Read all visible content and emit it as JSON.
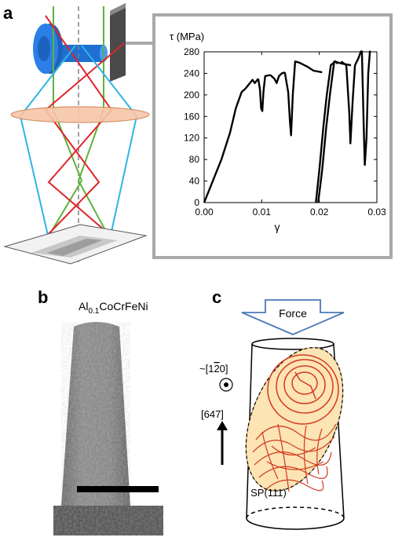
{
  "panels": {
    "a": {
      "letter": "a"
    },
    "b": {
      "letter": "b",
      "sample_name": {
        "prefix": "Al",
        "subscript": "0.1",
        "suffix": "CoCrFeNi"
      }
    },
    "c": {
      "letter": "c",
      "force_label": "Force",
      "direction_top": "~[1̅2̅0]",
      "direction_top_text": "~[120]",
      "direction_axis": "[647]",
      "slip_plane": "SP(111)"
    }
  },
  "colors": {
    "beam_green": "#5cb33a",
    "beam_red": "#e0242a",
    "beam_cyan": "#2fb5e6",
    "lens_fill": "#f7c6a8",
    "detector": "#5a5a5a",
    "holder_blue": "#1f6fd1",
    "chart_border": "#a9a9a9",
    "curve": "#000000",
    "sample_oval": "#fde4b4",
    "dislocation": "#d23a1f",
    "force_arrow_edge": "#4a7ab8"
  },
  "chart_data": {
    "type": "line",
    "title": "",
    "xlabel": "γ",
    "ylabel": "τ (MPa)",
    "xlim": [
      0.0,
      0.03
    ],
    "ylim": [
      0,
      280
    ],
    "xticks": [
      "0.00",
      "0.01",
      "0.02",
      "0.03"
    ],
    "xtick_values": [
      0.0,
      0.01,
      0.02,
      0.03
    ],
    "yticks": [
      "0",
      "40",
      "80",
      "120",
      "160",
      "200",
      "240",
      "280"
    ],
    "ytick_values": [
      0,
      40,
      80,
      120,
      160,
      200,
      240,
      280
    ],
    "grid": false,
    "series": [
      {
        "segments": [
          [
            [
              0.0,
              0
            ],
            [
              0.0015,
              40
            ],
            [
              0.003,
              80
            ],
            [
              0.0045,
              130
            ],
            [
              0.0055,
              175
            ],
            [
              0.0065,
              205
            ],
            [
              0.0072,
              212
            ]
          ],
          [
            [
              0.0072,
              212
            ],
            [
              0.0078,
              220
            ],
            [
              0.0084,
              228
            ],
            [
              0.0088,
              222
            ],
            [
              0.0094,
              230
            ]
          ],
          [
            [
              0.0094,
              230
            ],
            [
              0.0097,
              210
            ],
            [
              0.0099,
              175
            ],
            [
              0.0101,
              170
            ],
            [
              0.0103,
              205
            ],
            [
              0.0106,
              235
            ],
            [
              0.0115,
              237
            ]
          ],
          [
            [
              0.0115,
              237
            ],
            [
              0.0122,
              230
            ],
            [
              0.0126,
              222
            ],
            [
              0.013,
              235
            ],
            [
              0.0135,
              240
            ],
            [
              0.014,
              242
            ]
          ],
          [
            [
              0.014,
              242
            ],
            [
              0.0146,
              205
            ],
            [
              0.0149,
              150
            ],
            [
              0.0151,
              125
            ],
            [
              0.0154,
              200
            ],
            [
              0.0158,
              262
            ],
            [
              0.0165,
              260
            ]
          ],
          [
            [
              0.0165,
              260
            ],
            [
              0.018,
              252
            ],
            [
              0.019,
              245
            ],
            [
              0.0205,
              242
            ]
          ],
          [
            [
              0.0194,
              0
            ],
            [
              0.02,
              60
            ],
            [
              0.0207,
              140
            ],
            [
              0.0213,
              200
            ],
            [
              0.022,
              255
            ],
            [
              0.0228,
              262
            ],
            [
              0.0232,
              258
            ]
          ],
          [
            [
              0.0198,
              0
            ],
            [
              0.0205,
              60
            ],
            [
              0.0212,
              140
            ],
            [
              0.0219,
              205
            ],
            [
              0.0226,
              262
            ],
            [
              0.024,
              258
            ],
            [
              0.0255,
              255
            ]
          ],
          [
            [
              0.0238,
              262
            ],
            [
              0.0247,
              255
            ],
            [
              0.0252,
              168
            ],
            [
              0.0254,
              110
            ],
            [
              0.0258,
              190
            ],
            [
              0.0262,
              255
            ]
          ],
          [
            [
              0.0262,
              255
            ],
            [
              0.0268,
              268
            ],
            [
              0.0272,
              280
            ],
            [
              0.0274,
              282
            ]
          ],
          [
            [
              0.0274,
              282
            ],
            [
              0.0277,
              150
            ],
            [
              0.0279,
              70
            ],
            [
              0.0282,
              120
            ],
            [
              0.0285,
              240
            ],
            [
              0.0288,
              282
            ]
          ]
        ]
      }
    ]
  }
}
